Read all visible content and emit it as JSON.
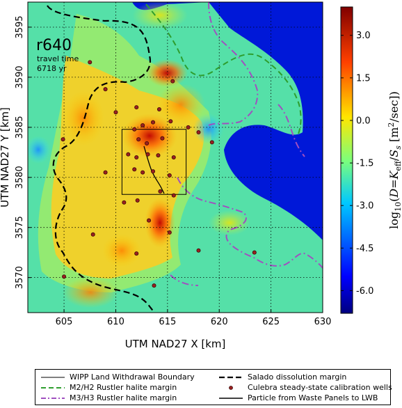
{
  "chart_data": {
    "type": "heatmap",
    "panel_label": "r640",
    "annotation_lines": [
      "travel time",
      "6718 yr"
    ],
    "xlabel": "UTM NAD27 X [km]",
    "ylabel": "UTM NAD27 Y [km]",
    "xlim": [
      601.5,
      630
    ],
    "ylim": [
      3566.5,
      3597.5
    ],
    "xticks": [
      605,
      610,
      615,
      620,
      625,
      630
    ],
    "yticks": [
      3570,
      3575,
      3580,
      3585,
      3590,
      3595
    ],
    "grid": true,
    "colorbar": {
      "label": "log10(D=Keff/Ss [m2/sec])",
      "range": [
        -6.8,
        4.0
      ],
      "ticks": [
        "-6.0",
        "-4.5",
        "-3.0",
        "-1.5",
        "0.0",
        "1.5",
        "3.0"
      ],
      "tick_values": [
        -6.0,
        -4.5,
        -3.0,
        -1.5,
        0.0,
        1.5,
        3.0
      ],
      "colormap": "jet"
    },
    "wipp_boundary": {
      "x": [
        610.6,
        616.8
      ],
      "y": [
        3578.3,
        3584.8
      ]
    },
    "wells": [
      [
        607.5,
        3591.5
      ],
      [
        609.0,
        3588.8
      ],
      [
        610.0,
        3586.5
      ],
      [
        612.0,
        3587.0
      ],
      [
        614.2,
        3586.8
      ],
      [
        611.8,
        3584.8
      ],
      [
        612.6,
        3585.2
      ],
      [
        613.6,
        3585.5
      ],
      [
        615.3,
        3585.6
      ],
      [
        617.0,
        3585.0
      ],
      [
        618.0,
        3584.5
      ],
      [
        619.3,
        3583.5
      ],
      [
        612.2,
        3583.8
      ],
      [
        613.0,
        3583.4
      ],
      [
        614.5,
        3583.9
      ],
      [
        611.2,
        3582.3
      ],
      [
        612.0,
        3582.0
      ],
      [
        613.1,
        3582.3
      ],
      [
        614.1,
        3582.2
      ],
      [
        615.6,
        3582.0
      ],
      [
        611.8,
        3580.8
      ],
      [
        612.6,
        3580.5
      ],
      [
        613.6,
        3580.6
      ],
      [
        615.2,
        3580.2
      ],
      [
        609.0,
        3580.5
      ],
      [
        610.8,
        3577.5
      ],
      [
        612.1,
        3577.7
      ],
      [
        614.3,
        3578.6
      ],
      [
        615.6,
        3578.2
      ],
      [
        613.2,
        3575.7
      ],
      [
        615.2,
        3574.5
      ],
      [
        612.0,
        3572.4
      ],
      [
        613.7,
        3569.2
      ],
      [
        605.0,
        3570.1
      ],
      [
        607.8,
        3574.3
      ],
      [
        618.0,
        3572.7
      ],
      [
        623.4,
        3572.5
      ],
      [
        604.9,
        3583.8
      ],
      [
        615.5,
        3589.6
      ]
    ],
    "wells_n": 39
  },
  "legend": {
    "wipp": "WIPP Land Withdrawal Boundary",
    "salado": "Salado dissolution margin",
    "m2": "M2/H2 Rustler halite margin",
    "wells": "Culebra steady-state calibration wells",
    "m3": "M3/H3 Rustler halite margin",
    "particle": "Particle from Waste Panels to LWB"
  },
  "colors": {
    "salado": "#000000",
    "m2": "#2e9e2e",
    "m3": "#a050c0",
    "well_fill": "#9a2020",
    "well_edge": "#3a0808",
    "particle": "#000000"
  }
}
